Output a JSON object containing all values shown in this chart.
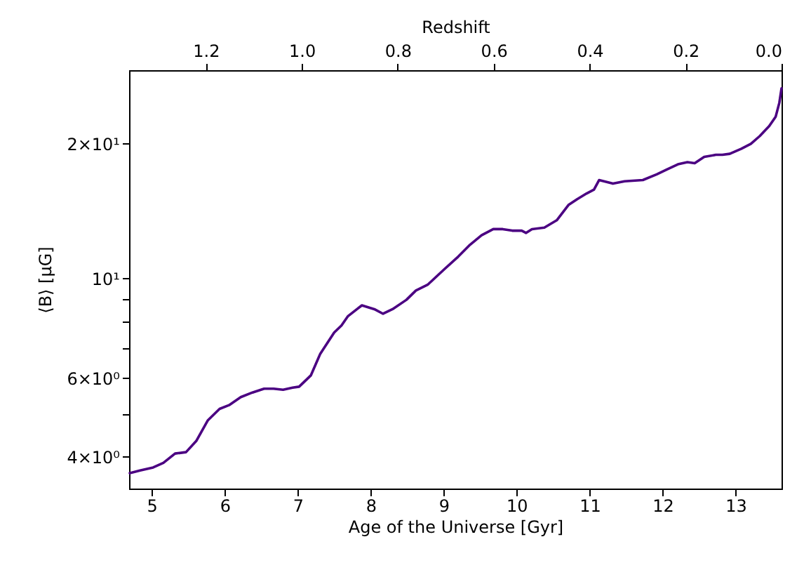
{
  "chart_data": {
    "type": "line",
    "xlabel": "Age of the Universe [Gyr]",
    "ylabel": "⟨B⟩ [μG]",
    "x2label": "Redshift",
    "log": "y",
    "grid": false,
    "xlim": [
      4.69,
      13.63
    ],
    "xticks": [
      5,
      6,
      7,
      8,
      9,
      10,
      11,
      12,
      13
    ],
    "x2lim": [
      1.36,
      0.0
    ],
    "x2ticks": [
      {
        "value": 1.2,
        "label": "1.2"
      },
      {
        "value": 1.0,
        "label": "1.0"
      },
      {
        "value": 0.8,
        "label": "0.8"
      },
      {
        "value": 0.6,
        "label": "0.6"
      },
      {
        "value": 0.4,
        "label": "0.4"
      },
      {
        "value": 0.2,
        "label": "0.2"
      },
      {
        "value": 0.0,
        "label": "0.0"
      }
    ],
    "ylim": [
      3.4,
      29.2
    ],
    "yticks": [
      {
        "value": 4,
        "label": "4×10⁰"
      },
      {
        "value": 5,
        "label": null
      },
      {
        "value": 6,
        "label": "6×10⁰"
      },
      {
        "value": 7,
        "label": null
      },
      {
        "value": 8,
        "label": null
      },
      {
        "value": 9,
        "label": null
      },
      {
        "value": 10,
        "label": "10¹"
      },
      {
        "value": 20,
        "label": "2×10¹"
      }
    ],
    "x": [
      4.7,
      4.84,
      5.02,
      5.16,
      5.32,
      5.47,
      5.61,
      5.77,
      5.93,
      6.06,
      6.22,
      6.38,
      6.54,
      6.67,
      6.8,
      6.93,
      7.02,
      7.18,
      7.31,
      7.5,
      7.6,
      7.69,
      7.88,
      8.05,
      8.17,
      8.3,
      8.49,
      8.62,
      8.78,
      9.01,
      9.2,
      9.36,
      9.52,
      9.68,
      9.81,
      9.94,
      10.07,
      10.13,
      10.21,
      10.38,
      10.55,
      10.71,
      10.83,
      10.96,
      11.06,
      11.13,
      11.32,
      11.48,
      11.73,
      11.92,
      12.05,
      12.21,
      12.34,
      12.44,
      12.57,
      12.73,
      12.82,
      12.92,
      13.08,
      13.21,
      13.33,
      13.46,
      13.55,
      13.6,
      13.63
    ],
    "series": [
      {
        "color": "#4b0082",
        "values": [
          3.68,
          3.73,
          3.79,
          3.88,
          4.07,
          4.1,
          4.34,
          4.83,
          5.12,
          5.22,
          5.44,
          5.57,
          5.68,
          5.68,
          5.65,
          5.71,
          5.74,
          6.08,
          6.8,
          7.58,
          7.86,
          8.25,
          8.72,
          8.55,
          8.35,
          8.55,
          8.97,
          9.41,
          9.69,
          10.5,
          11.2,
          11.9,
          12.5,
          12.9,
          12.9,
          12.8,
          12.8,
          12.65,
          12.9,
          13.0,
          13.5,
          14.6,
          15.05,
          15.5,
          15.8,
          16.6,
          16.3,
          16.5,
          16.6,
          17.1,
          17.5,
          18.0,
          18.2,
          18.1,
          18.7,
          18.9,
          18.9,
          19.0,
          19.5,
          20.0,
          20.8,
          21.9,
          23.0,
          24.7,
          26.6
        ]
      }
    ]
  }
}
